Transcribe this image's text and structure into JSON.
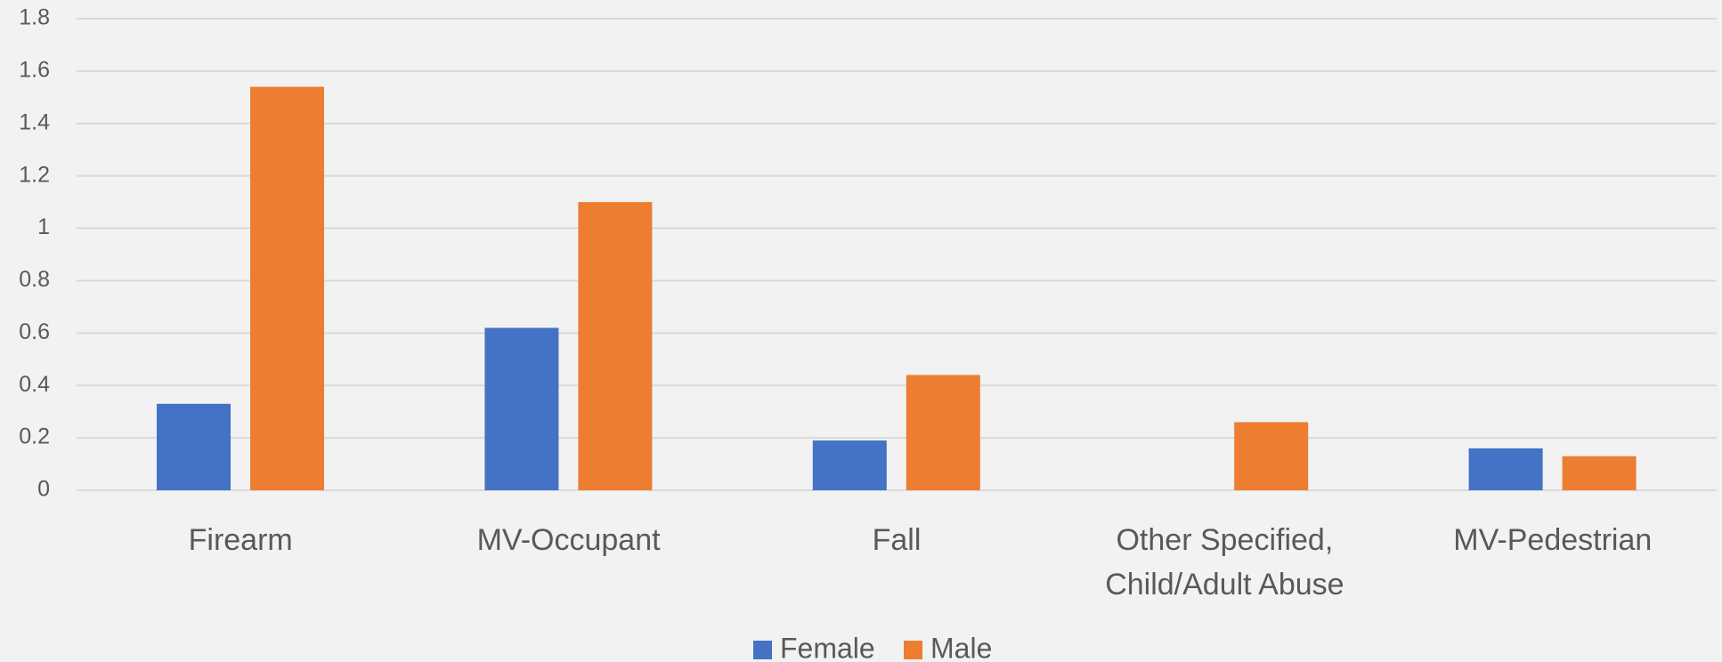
{
  "chart_data": {
    "type": "bar",
    "categories": [
      "Firearm",
      "MV-Occupant",
      "Fall",
      "Other Specified, Child/Adult Abuse",
      "MV-Pedestrian"
    ],
    "series": [
      {
        "name": "Female",
        "color": "#4472c4",
        "values": [
          0.33,
          0.62,
          0.19,
          0,
          0.16
        ]
      },
      {
        "name": "Male",
        "color": "#ed7d31",
        "values": [
          1.54,
          1.1,
          0.44,
          0.26,
          0.13
        ]
      }
    ],
    "ylim": [
      0,
      1.8
    ],
    "yticks": [
      0,
      0.2,
      0.4,
      0.6,
      0.8,
      1,
      1.2,
      1.4,
      1.6,
      1.8
    ],
    "grid": true,
    "legend": "bottom"
  }
}
